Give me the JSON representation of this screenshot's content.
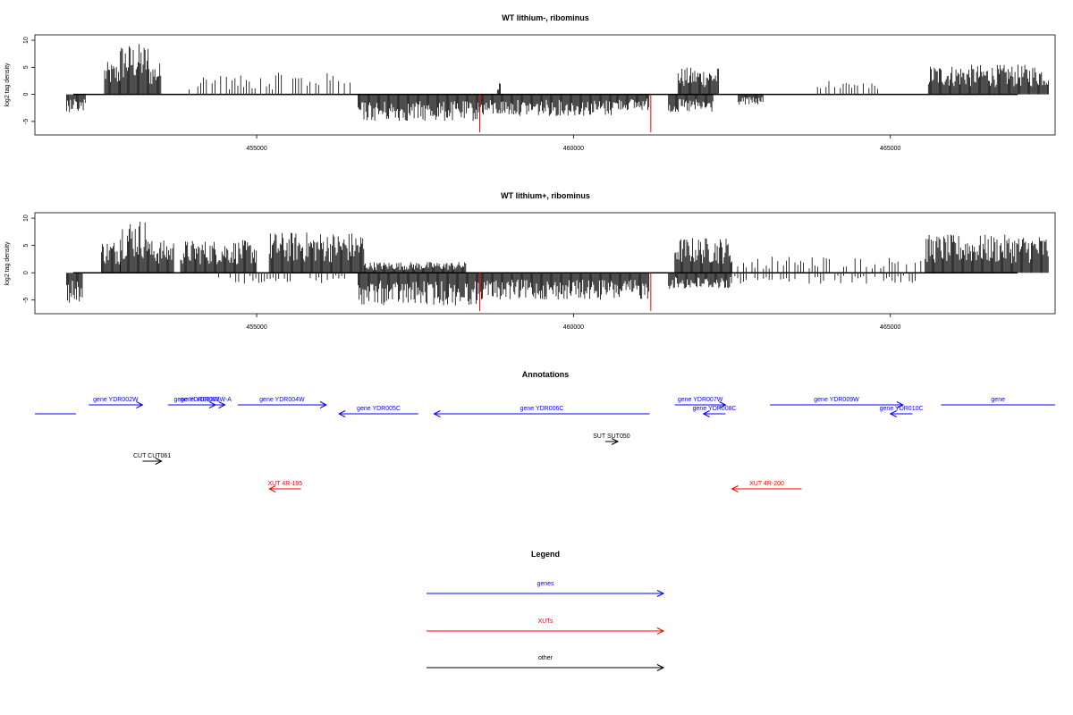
{
  "colors": {
    "genes": "#0000ff",
    "XUTs": "#ff0000",
    "other": "#000000",
    "highlight": "#ff0000",
    "signal": "#000000"
  },
  "chart_data": [
    {
      "type": "bar",
      "title": "WT lithium-, ribominus",
      "ylabel": "log2 tag density",
      "xlim": [
        451500,
        467600
      ],
      "ylim": [
        -7.5,
        11
      ],
      "yticks": [
        -5,
        0,
        5,
        10
      ],
      "xticks": [
        455000,
        460000,
        465000
      ],
      "xtick_labels": [
        "455000",
        "460000",
        "465000"
      ],
      "grid": false,
      "highlight_lines": [
        {
          "x": 458520,
          "y": -7
        },
        {
          "x": 461220,
          "y": -7
        }
      ],
      "positive_regions": [
        {
          "start": 452600,
          "end": 452850,
          "max": 6
        },
        {
          "start": 452850,
          "end": 453300,
          "max": 9.5
        },
        {
          "start": 453300,
          "end": 453500,
          "max": 6
        },
        {
          "start": 453800,
          "end": 455300,
          "max": 3.5,
          "sparse": true
        },
        {
          "start": 455300,
          "end": 456600,
          "max": 4,
          "sparse": true
        },
        {
          "start": 458800,
          "end": 458850,
          "max": 2.5
        },
        {
          "start": 461650,
          "end": 462300,
          "max": 5
        },
        {
          "start": 463850,
          "end": 464800,
          "max": 2.5,
          "sparse": true
        },
        {
          "start": 465600,
          "end": 467500,
          "max": 5.5
        }
      ],
      "negative_regions": [
        {
          "start": 452000,
          "end": 452300,
          "min": -3.5
        },
        {
          "start": 456600,
          "end": 458500,
          "min": -5
        },
        {
          "start": 458500,
          "end": 460600,
          "min": -4
        },
        {
          "start": 460600,
          "end": 461200,
          "min": -3
        },
        {
          "start": 461500,
          "end": 462200,
          "min": -3.5
        },
        {
          "start": 462600,
          "end": 463000,
          "min": -2
        }
      ]
    },
    {
      "type": "bar",
      "title": "WT lithium+, ribominus",
      "ylabel": "log2 tag density",
      "xlim": [
        451500,
        467600
      ],
      "ylim": [
        -7.5,
        11
      ],
      "yticks": [
        -5,
        0,
        5,
        10
      ],
      "xticks": [
        455000,
        460000,
        465000
      ],
      "xtick_labels": [
        "455000",
        "460000",
        "465000"
      ],
      "grid": false,
      "highlight_lines": [
        {
          "x": 458520,
          "y": -7
        },
        {
          "x": 461220,
          "y": -7
        }
      ],
      "positive_regions": [
        {
          "start": 452550,
          "end": 452850,
          "max": 6
        },
        {
          "start": 452850,
          "end": 453300,
          "max": 10
        },
        {
          "start": 453300,
          "end": 453700,
          "max": 6
        },
        {
          "start": 453800,
          "end": 455000,
          "max": 6
        },
        {
          "start": 455200,
          "end": 456700,
          "max": 7.5
        },
        {
          "start": 456700,
          "end": 458300,
          "max": 2
        },
        {
          "start": 461600,
          "end": 462500,
          "max": 6.5
        },
        {
          "start": 462500,
          "end": 465500,
          "max": 3,
          "sparse": true
        },
        {
          "start": 465550,
          "end": 467500,
          "max": 7
        }
      ],
      "negative_regions": [
        {
          "start": 452000,
          "end": 452250,
          "min": -5.5
        },
        {
          "start": 454400,
          "end": 456500,
          "min": -2,
          "sparse": true
        },
        {
          "start": 456600,
          "end": 458500,
          "min": -6
        },
        {
          "start": 458500,
          "end": 461200,
          "min": -5
        },
        {
          "start": 461500,
          "end": 462500,
          "min": -3
        },
        {
          "start": 462500,
          "end": 465400,
          "min": -2,
          "sparse": true
        }
      ]
    }
  ],
  "annotations": {
    "title": "Annotations",
    "items": [
      {
        "label": "",
        "kind": "gene",
        "start": 451500,
        "end": 452150,
        "strand": "-",
        "row": 1,
        "partial": true
      },
      {
        "label": "gene YDR002W",
        "kind": "gene",
        "start": 452350,
        "end": 453200,
        "strand": "+",
        "row": 0
      },
      {
        "label": "gene YDR003W",
        "kind": "gene",
        "start": 453600,
        "end": 454500,
        "strand": "+",
        "row": 0
      },
      {
        "label": "gene YDR003W-A",
        "kind": "gene",
        "start": 454050,
        "end": 454350,
        "strand": "+",
        "row": 0
      },
      {
        "label": "gene YDR004W",
        "kind": "gene",
        "start": 454700,
        "end": 456100,
        "strand": "+",
        "row": 0
      },
      {
        "label": "gene YDR005C",
        "kind": "gene",
        "start": 456300,
        "end": 457550,
        "strand": "-",
        "row": 1
      },
      {
        "label": "gene YDR006C",
        "kind": "gene",
        "start": 457800,
        "end": 461200,
        "strand": "-",
        "row": 1
      },
      {
        "label": "gene YDR007W",
        "kind": "gene",
        "start": 461600,
        "end": 462400,
        "strand": "+",
        "row": 0
      },
      {
        "label": "gene YDR008C",
        "kind": "gene",
        "start": 462050,
        "end": 462400,
        "strand": "-",
        "row": 1
      },
      {
        "label": "gene YDR009W",
        "kind": "gene",
        "start": 463100,
        "end": 465200,
        "strand": "+",
        "row": 0
      },
      {
        "label": "gene YDR010C",
        "kind": "gene",
        "start": 465000,
        "end": 465350,
        "strand": "-",
        "row": 1
      },
      {
        "label": "gene",
        "kind": "gene",
        "start": 465800,
        "end": 467600,
        "strand": "+",
        "row": 0,
        "partial": true
      },
      {
        "label": "SUT SUT050",
        "kind": "other",
        "start": 460500,
        "end": 460700,
        "strand": "+",
        "row": 2
      },
      {
        "label": "CUT CUT061",
        "kind": "other",
        "start": 453200,
        "end": 453500,
        "strand": "+",
        "row": 3
      },
      {
        "label": "XUT 4R-195",
        "kind": "xut",
        "start": 455200,
        "end": 455700,
        "strand": "-",
        "row": 4
      },
      {
        "label": "XUT 4R-200",
        "kind": "xut",
        "start": 462500,
        "end": 463600,
        "strand": "-",
        "row": 4
      }
    ]
  },
  "legend": {
    "title": "Legend",
    "entries": [
      {
        "label": "genes",
        "kind": "genes"
      },
      {
        "label": "XUTs",
        "kind": "XUTs"
      },
      {
        "label": "other",
        "kind": "other"
      }
    ]
  }
}
